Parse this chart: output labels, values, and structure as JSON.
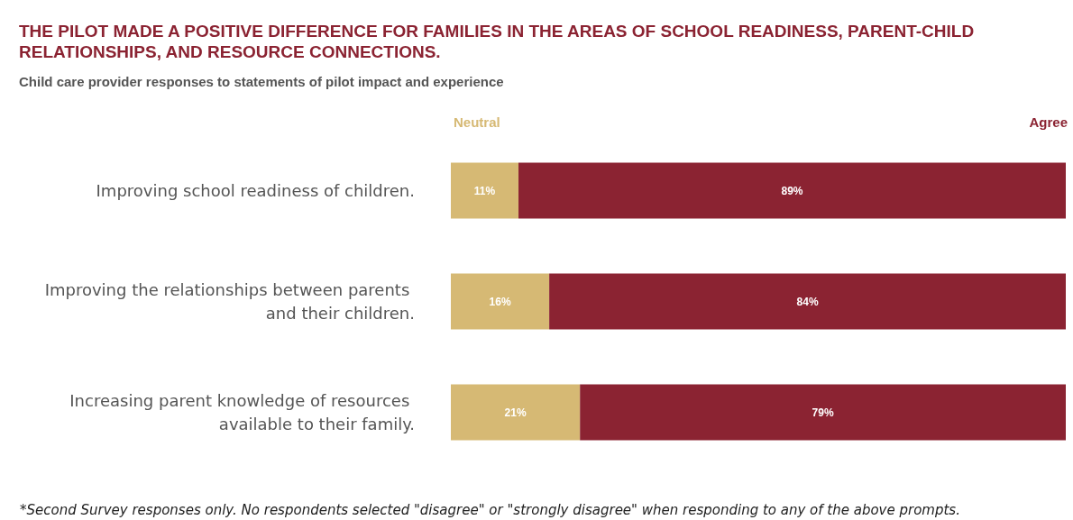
{
  "chart_data": {
    "type": "bar",
    "orientation": "horizontal",
    "stacked": true,
    "title": "THE PILOT MADE A POSITIVE DIFFERENCE FOR FAMILIES IN THE AREAS OF SCHOOL READINESS, PARENT-CHILD RELATIONSHIPS, AND RESOURCE CONNECTIONS.",
    "subtitle": "Child care provider responses to statements of pilot impact and experience",
    "categories": [
      "Improving school readiness of children.",
      "Improving the relationships between parents and their children.",
      "Increasing parent knowledge of resources available to their family."
    ],
    "series": [
      {
        "name": "Neutral",
        "color": "#d6b974",
        "values": [
          11,
          16,
          21
        ],
        "value_labels": [
          "11%",
          "16%",
          "21%"
        ]
      },
      {
        "name": "Agree",
        "color": "#8b2332",
        "values": [
          89,
          84,
          79
        ],
        "value_labels": [
          "89%",
          "84%",
          "79%"
        ]
      }
    ],
    "tick_labels": "y",
    "grid": false,
    "legend": "top",
    "annotations": [
      "*Second Survey responses only. No respondents selected \"disagree\" or \"strongly disagree\" when responding to any of the above prompts."
    ]
  }
}
